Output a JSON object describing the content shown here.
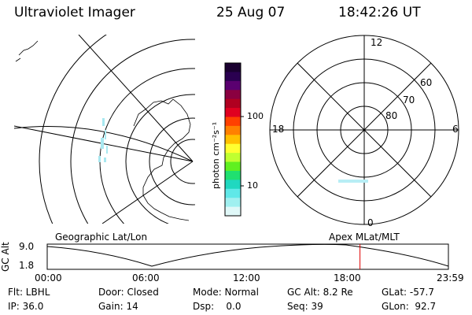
{
  "header": {
    "instrument": "Ultraviolet Imager",
    "date": "25 Aug 07",
    "time": "18:42:26 UT"
  },
  "colorbar": {
    "unit_label": "photon cm⁻²s⁻¹",
    "ticks": [
      "100",
      "10"
    ],
    "colors": [
      "#1a0030",
      "#2a0050",
      "#5a0070",
      "#8a0040",
      "#b00020",
      "#e00020",
      "#ff4000",
      "#ff8000",
      "#ffc000",
      "#ffff30",
      "#c0ff30",
      "#60f020",
      "#20e070",
      "#20d8c0",
      "#60e8e8",
      "#a0f0f0",
      "#e0f8f8"
    ]
  },
  "polar_plot": {
    "mlt_labels": {
      "top": "12",
      "left": "18",
      "right": "6",
      "bottom": "0"
    },
    "lat_labels": [
      "60",
      "70",
      "80"
    ]
  },
  "map_labels": {
    "left": "Geographic Lat/Lon",
    "right": "Apex MLat/MLT"
  },
  "orbit_plot": {
    "ylabel": "GC Alt",
    "y_ticks": [
      "9.0",
      "1.8"
    ],
    "x_ticks": [
      "00:00",
      "06:00",
      "12:00",
      "18:00",
      "23:59"
    ],
    "current_time_hours": 18.71,
    "marker_color": "#e00000"
  },
  "status": {
    "filter": "Flt: LBHL",
    "door": "Door: Closed",
    "mode": "Mode: Normal",
    "gc_alt": "GC Alt: 8.2 Re",
    "glat": "GLat: -57.7",
    "ip": "IP: 36.0",
    "gain": "Gain: 14",
    "dsp": "Dsp:    0.0",
    "seq": "Seq: 39",
    "glon": "GLon:  92.7"
  }
}
